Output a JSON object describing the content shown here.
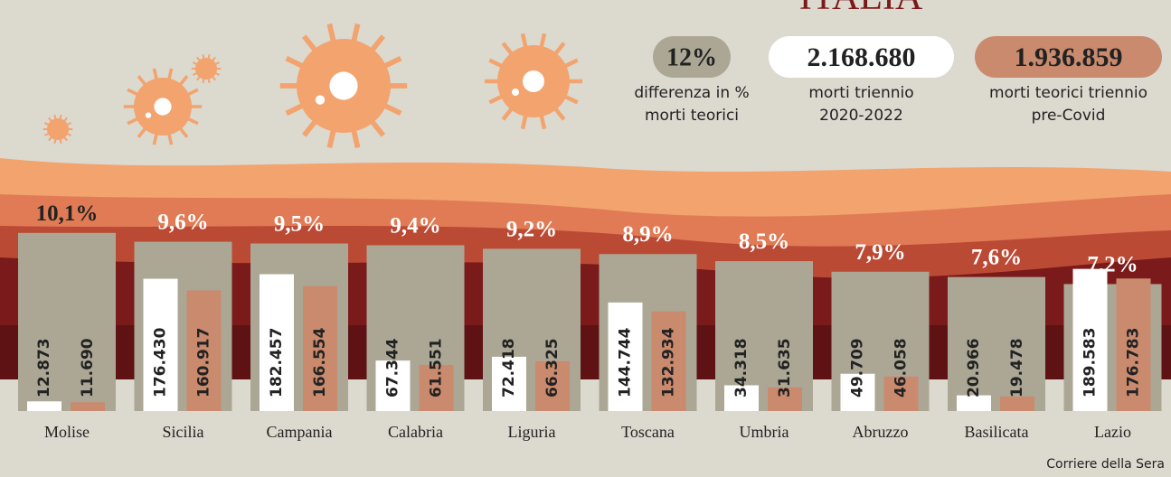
{
  "chart_data": {
    "type": "bar",
    "title": "ITALIA",
    "summary": {
      "value": 12,
      "label": "12%",
      "text": [
        "differenza in %",
        "morti teorici"
      ]
    },
    "categories": [
      "Molise",
      "Sicilia",
      "Campania",
      "Calabria",
      "Liguria",
      "Toscana",
      "Umbria",
      "Abruzzo",
      "Basilicata",
      "Lazio"
    ],
    "percent": {
      "values": [
        10.1,
        9.6,
        9.5,
        9.4,
        9.2,
        8.9,
        8.5,
        7.9,
        7.6,
        7.2
      ],
      "value_labels": [
        "10,1%",
        "9,6%",
        "9,5%",
        "9,4%",
        "9,2%",
        "8,9%",
        "8,5%",
        "7,9%",
        "7,6%",
        "7,2%"
      ],
      "color": "#aca795",
      "ylim": [
        0,
        10.5
      ]
    },
    "series": [
      {
        "name": [
          "morti triennio",
          "2020-2022"
        ],
        "total": 2168680,
        "total_label": "2.168.680",
        "color": "#ffffff",
        "values": [
          12873,
          176430,
          182457,
          67344,
          72418,
          144744,
          34318,
          49709,
          20966,
          189583
        ],
        "value_labels": [
          "12.873",
          "176.430",
          "182.457",
          "67.344",
          "72.418",
          "144.744",
          "34.318",
          "49.709",
          "20.966",
          "189.583"
        ]
      },
      {
        "name": [
          "morti teorici triennio",
          "pre-Covid"
        ],
        "total": 1936859,
        "total_label": "1.936.859",
        "color": "#c98a6e",
        "values": [
          11690,
          160917,
          166554,
          61551,
          66325,
          132934,
          31635,
          46058,
          19478,
          176783
        ],
        "value_labels": [
          "11.690",
          "160.917",
          "166.554",
          "61.551",
          "66.325",
          "132.934",
          "31.635",
          "46.058",
          "19.478",
          "176.783"
        ]
      }
    ],
    "ylim": [
      0,
      200000
    ],
    "source": "Corriere della Sera"
  }
}
